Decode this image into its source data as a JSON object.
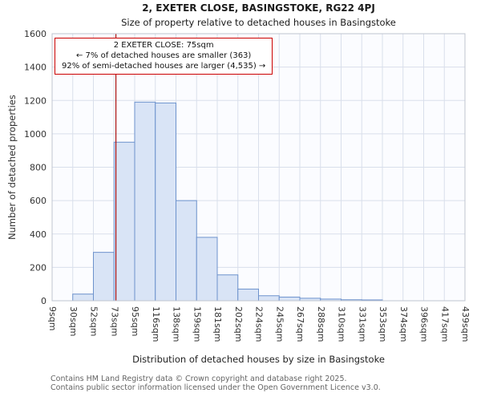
{
  "annotation": {
    "line1": "2 EXETER CLOSE: 75sqm",
    "line2": "← 7% of detached houses are smaller (363)",
    "line3": "92% of semi-detached houses are larger (4,535) →",
    "border_color": "#cc0000"
  },
  "footer": {
    "line1": "Contains HM Land Registry data © Crown copyright and database right 2025.",
    "line2": "Contains public sector information licensed under the Open Government Licence v3.0."
  },
  "chart_data": {
    "type": "bar",
    "title": "2, EXETER CLOSE, BASINGSTOKE, RG22 4PJ",
    "subtitle": "Size of property relative to detached houses in Basingstoke",
    "xlabel": "Distribution of detached houses by size in Basingstoke",
    "ylabel": "Number of detached properties",
    "bin_edges_sqm": [
      9,
      30,
      52,
      73,
      95,
      116,
      138,
      159,
      181,
      202,
      224,
      245,
      267,
      288,
      310,
      331,
      353,
      374,
      396,
      417,
      439
    ],
    "tick_labels": [
      "9sqm",
      "30sqm",
      "52sqm",
      "73sqm",
      "95sqm",
      "116sqm",
      "138sqm",
      "159sqm",
      "181sqm",
      "202sqm",
      "224sqm",
      "245sqm",
      "267sqm",
      "288sqm",
      "310sqm",
      "331sqm",
      "353sqm",
      "374sqm",
      "396sqm",
      "417sqm",
      "439sqm"
    ],
    "values": [
      0,
      40,
      290,
      950,
      1190,
      1185,
      600,
      380,
      155,
      70,
      30,
      22,
      15,
      10,
      6,
      5,
      0,
      0,
      0,
      0
    ],
    "ylim": [
      0,
      1600
    ],
    "yticks": [
      0,
      200,
      400,
      600,
      800,
      1000,
      1200,
      1400,
      1600
    ],
    "grid": true,
    "marker_value_sqm": 75,
    "marker_color": "#aa1111",
    "bar_fill": "#d9e4f6",
    "bar_stroke": "#6d92cc",
    "grid_color": "#d9dfeb",
    "plot_bg": "#fbfcff",
    "border_color": "#bfc4cf"
  }
}
